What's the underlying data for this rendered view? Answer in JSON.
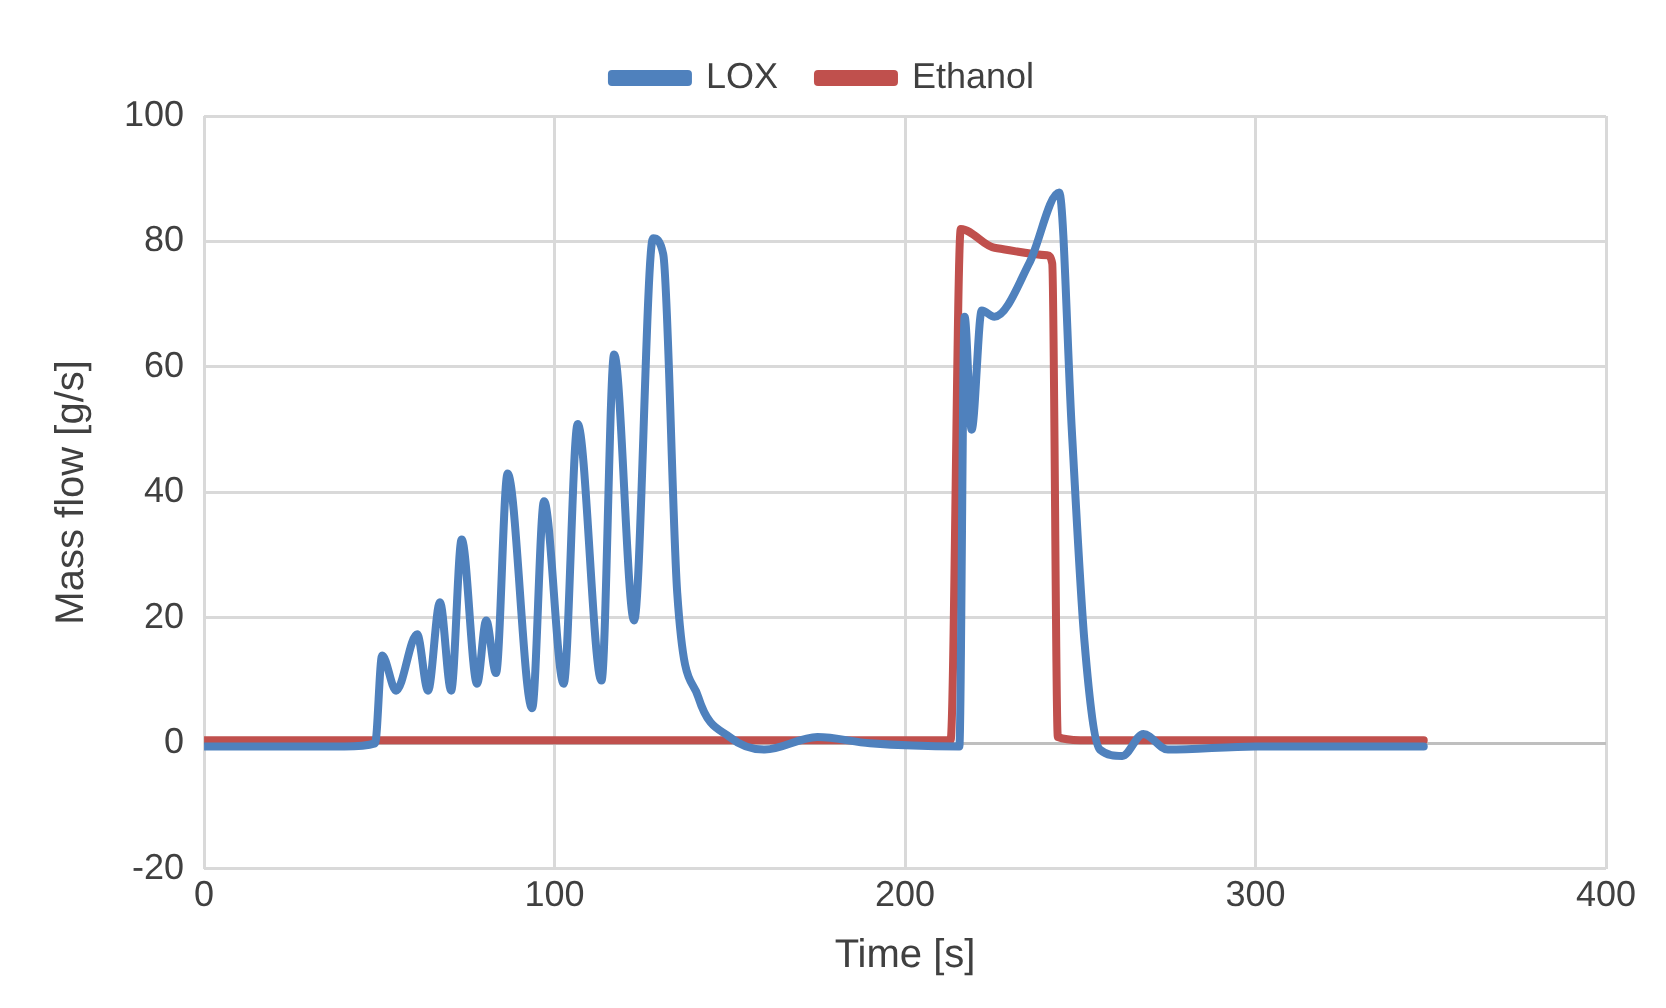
{
  "chart_data": {
    "type": "line",
    "xlabel": "Time [s]",
    "ylabel": "Mass flow [g/s]",
    "xlim": [
      0,
      400
    ],
    "xticks": [
      0,
      100,
      200,
      300,
      400
    ],
    "ylim": [
      -20,
      100
    ],
    "yticks": [
      -20,
      0,
      20,
      40,
      60,
      80,
      100
    ],
    "grid": true,
    "legend": "top",
    "marker": "none",
    "line_style": "solid",
    "series": [
      {
        "name": "LOX",
        "color": "#4f81bd",
        "x": [
          0,
          20,
          40,
          48.8,
          50.8,
          54.8,
          60.8,
          63.9,
          67.3,
          70.5,
          73.5,
          77.9,
          80.5,
          83.3,
          86.6,
          93.6,
          97,
          102.6,
          106.6,
          113.4,
          117,
          122.7,
          128.1,
          131,
          135,
          141,
          150,
          160,
          175,
          190,
          215.5,
          217,
          219,
          221.9,
          225.5,
          235.5,
          244,
          247.6,
          251.2,
          255.6,
          262,
          268,
          275,
          300,
          348
        ],
        "values": [
          -0.5,
          -0.5,
          -0.5,
          0,
          14,
          8.4,
          17.4,
          8.4,
          22.5,
          8.4,
          32.5,
          9.5,
          19.6,
          11.2,
          43,
          5.6,
          38.6,
          9.5,
          50.9,
          10,
          62,
          19.6,
          80.5,
          78,
          24,
          7.4,
          1,
          -1,
          1,
          0,
          -0.5,
          68,
          50,
          69,
          68,
          76.6,
          87.8,
          49.8,
          16.2,
          -1,
          -2,
          1.5,
          -1,
          -0.5,
          -0.5
        ]
      },
      {
        "name": "Ethanol",
        "color": "#c0504d",
        "x": [
          0,
          100,
          213,
          215.9,
          225.5,
          240.6,
          242,
          243.6,
          250,
          300,
          348
        ],
        "values": [
          0.5,
          0.5,
          0.5,
          82,
          79,
          77.8,
          76.5,
          1,
          0.5,
          0.5,
          0.5
        ]
      }
    ]
  }
}
